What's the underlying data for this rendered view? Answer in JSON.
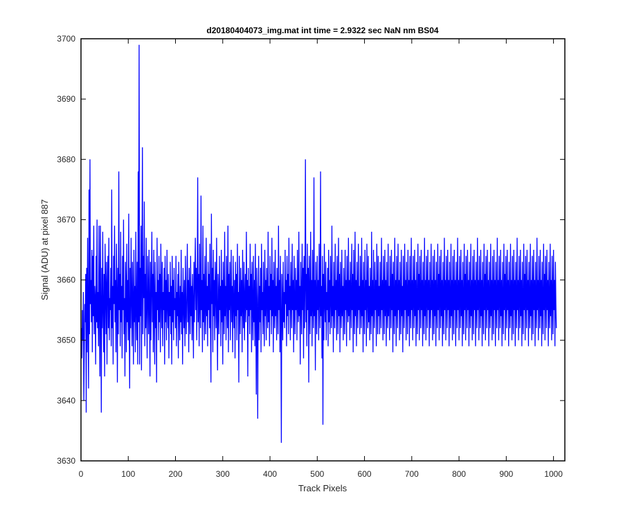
{
  "chart_data": {
    "type": "line",
    "title": "d20180404073_img.mat int time = 2.9322 sec  NaN nm BS04",
    "xlabel": "Track Pixels",
    "ylabel": "Signal (ADU) at pixel 887",
    "xlim": [
      0,
      1024
    ],
    "ylim": [
      3630,
      3700
    ],
    "xticks": [
      0,
      100,
      200,
      300,
      400,
      500,
      600,
      700,
      800,
      900,
      1000
    ],
    "yticks": [
      3630,
      3640,
      3650,
      3660,
      3670,
      3680,
      3690,
      3700
    ],
    "xtick_labels": [
      "0",
      "100",
      "200",
      "300",
      "400",
      "500",
      "600",
      "700",
      "800",
      "900",
      "1000"
    ],
    "ytick_labels": [
      "3630",
      "3640",
      "3650",
      "3660",
      "3670",
      "3680",
      "3690",
      "3700"
    ],
    "grid": false,
    "series": [
      {
        "color": "#0000ff",
        "x_start": 1,
        "x_step": 1,
        "values": [
          3652,
          3647,
          3655,
          3650,
          3658,
          3640,
          3649,
          3656,
          3653,
          3661,
          3638,
          3662,
          3648,
          3667,
          3653,
          3642,
          3675,
          3651,
          3680,
          3656,
          3660,
          3653,
          3665,
          3648,
          3664,
          3654,
          3669,
          3651,
          3659,
          3657,
          3646,
          3664,
          3653,
          3670,
          3652,
          3658,
          3649,
          3669,
          3655,
          3644,
          3669,
          3656,
          3638,
          3662,
          3652,
          3668,
          3655,
          3648,
          3661,
          3644,
          3666,
          3658,
          3651,
          3663,
          3646,
          3659,
          3664,
          3652,
          3667,
          3650,
          3657,
          3655,
          3662,
          3649,
          3675,
          3652,
          3659,
          3646,
          3664,
          3656,
          3669,
          3653,
          3660,
          3648,
          3666,
          3658,
          3643,
          3662,
          3651,
          3678,
          3655,
          3661,
          3649,
          3668,
          3653,
          3659,
          3647,
          3664,
          3655,
          3670,
          3651,
          3657,
          3644,
          3663,
          3659,
          3648,
          3666,
          3653,
          3660,
          3650,
          3671,
          3654,
          3642,
          3662,
          3652,
          3667,
          3657,
          3649,
          3663,
          3656,
          3646,
          3665,
          3653,
          3659,
          3648,
          3668,
          3655,
          3650,
          3663,
          3646,
          3678,
          3653,
          3699,
          3646,
          3662,
          3654,
          3669,
          3645,
          3660,
          3682,
          3651,
          3664,
          3657,
          3673,
          3649,
          3661,
          3652,
          3667,
          3655,
          3647,
          3664,
          3658,
          3651,
          3665,
          3656,
          3644,
          3663,
          3650,
          3659,
          3668,
          3653,
          3661,
          3648,
          3665,
          3656,
          3646,
          3663,
          3652,
          3658,
          3643,
          3667,
          3655,
          3660,
          3650,
          3664,
          3653,
          3661,
          3648,
          3666,
          3657,
          3652,
          3663,
          3649,
          3658,
          3655,
          3662,
          3646,
          3664,
          3653,
          3660,
          3650,
          3665,
          3656,
          3652,
          3661,
          3647,
          3658,
          3654,
          3663,
          3651,
          3659,
          3646,
          3664,
          3653,
          3660,
          3650,
          3662,
          3655,
          3657,
          3652,
          3664,
          3649,
          3658,
          3654,
          3661,
          3647,
          3663,
          3656,
          3650,
          3659,
          3653,
          3665,
          3651,
          3658,
          3646,
          3662,
          3656,
          3652,
          3660,
          3649,
          3664,
          3655,
          3651,
          3658,
          3666,
          3653,
          3660,
          3648,
          3662,
          3657,
          3651,
          3664,
          3654,
          3659,
          3650,
          3661,
          3656,
          3647,
          3663,
          3653,
          3660,
          3667,
          3655,
          3662,
          3650,
          3659,
          3677,
          3653,
          3661,
          3649,
          3666,
          3656,
          3652,
          3674,
          3655,
          3660,
          3648,
          3669,
          3653,
          3661,
          3650,
          3664,
          3656,
          3651,
          3667,
          3654,
          3659,
          3649,
          3663,
          3655,
          3661,
          3652,
          3666,
          3653,
          3643,
          3671,
          3656,
          3662,
          3648,
          3665,
          3654,
          3660,
          3650,
          3663,
          3658,
          3652,
          3667,
          3654,
          3645,
          3661,
          3657,
          3651,
          3664,
          3655,
          3659,
          3649,
          3665,
          3653,
          3660,
          3646,
          3663,
          3656,
          3651,
          3668,
          3654,
          3659,
          3650,
          3664,
          3657,
          3652,
          3669,
          3648,
          3661,
          3655,
          3663,
          3650,
          3657,
          3665,
          3653,
          3659,
          3648,
          3664,
          3656,
          3652,
          3660,
          3647,
          3663,
          3654,
          3661,
          3650,
          3666,
          3655,
          3658,
          3643,
          3664,
          3657,
          3651,
          3662,
          3654,
          3660,
          3648,
          3665,
          3656,
          3652,
          3663,
          3650,
          3657,
          3661,
          3653,
          3668,
          3655,
          3660,
          3644,
          3662,
          3654,
          3659,
          3651,
          3666,
          3655,
          3661,
          3648,
          3663,
          3656,
          3650,
          3664,
          3653,
          3660,
          3649,
          3666,
          3655,
          3641,
          3662,
          3656,
          3637,
          3657,
          3664,
          3650,
          3659,
          3653,
          3662,
          3648,
          3666,
          3655,
          3658,
          3651,
          3663,
          3656,
          3649,
          3665,
          3654,
          3660,
          3650,
          3662,
          3657,
          3652,
          3668,
          3653,
          3659,
          3649,
          3664,
          3655,
          3661,
          3651,
          3667,
          3654,
          3660,
          3648,
          3663,
          3656,
          3652,
          3665,
          3654,
          3659,
          3650,
          3662,
          3657,
          3651,
          3669,
          3655,
          3660,
          3648,
          3664,
          3654,
          3633,
          3661,
          3656,
          3650,
          3663,
          3653,
          3658,
          3652,
          3665,
          3656,
          3660,
          3649,
          3664,
          3654,
          3661,
          3651,
          3667,
          3655,
          3659,
          3650,
          3663,
          3657,
          3652,
          3666,
          3655,
          3660,
          3648,
          3664,
          3656,
          3651,
          3662,
          3655,
          3660,
          3650,
          3665,
          3656,
          3653,
          3668,
          3654,
          3659,
          3646,
          3663,
          3657,
          3651,
          3666,
          3655,
          3662,
          3647,
          3664,
          3652,
          3659,
          3680,
          3653,
          3661,
          3649,
          3666,
          3655,
          3662,
          3643,
          3664,
          3657,
          3651,
          3668,
          3654,
          3660,
          3649,
          3665,
          3656,
          3652,
          3677,
          3654,
          3660,
          3645,
          3663,
          3657,
          3651,
          3664,
          3655,
          3660,
          3650,
          3666,
          3657,
          3652,
          3678,
          3654,
          3659,
          3647,
          3664,
          3636,
          3661,
          3650,
          3666,
          3656,
          3653,
          3663,
          3650,
          3658,
          3655,
          3662,
          3649,
          3665,
          3653,
          3660,
          3651,
          3664,
          3657,
          3652,
          3669,
          3654,
          3659,
          3648,
          3663,
          3656,
          3652,
          3666,
          3655,
          3660,
          3650,
          3664,
          3657,
          3651,
          3667,
          3654,
          3661,
          3648,
          3663,
          3656,
          3652,
          3665,
          3654,
          3659,
          3650,
          3662,
          3657,
          3651,
          3665,
          3655,
          3660,
          3649,
          3664,
          3656,
          3653,
          3667,
          3654,
          3660,
          3650,
          3663,
          3657,
          3652,
          3666,
          3655,
          3661,
          3648,
          3665,
          3656,
          3651,
          3668,
          3654,
          3660,
          3649,
          3663,
          3657,
          3652,
          3666,
          3655,
          3659,
          3651,
          3664,
          3656,
          3652,
          3667,
          3654,
          3660,
          3648,
          3663,
          3656,
          3651,
          3665,
          3655,
          3660,
          3649,
          3666,
          3657,
          3652,
          3664,
          3653,
          3659,
          3650,
          3662,
          3656,
          3651,
          3668,
          3654,
          3660,
          3648,
          3665,
          3656,
          3652,
          3663,
          3655,
          3660,
          3649,
          3666,
          3657,
          3651,
          3664,
          3654,
          3659,
          3651,
          3663,
          3656,
          3652,
          3667,
          3655,
          3660,
          3650,
          3664,
          3657,
          3651,
          3665,
          3654,
          3660,
          3649,
          3663,
          3656,
          3652,
          3666,
          3654,
          3659,
          3650,
          3664,
          3657,
          3652,
          3665,
          3655,
          3661,
          3648,
          3663,
          3656,
          3651,
          3667,
          3654,
          3660,
          3649,
          3664,
          3656,
          3652,
          3666,
          3655,
          3660,
          3650,
          3663,
          3657,
          3651,
          3665,
          3654,
          3659,
          3648,
          3664,
          3656,
          3652,
          3666,
          3655,
          3660,
          3650,
          3663,
          3657,
          3651,
          3665,
          3654,
          3660,
          3649,
          3664,
          3656,
          3652,
          3667,
          3655,
          3660,
          3650,
          3664,
          3657,
          3652,
          3665,
          3654,
          3660,
          3649,
          3663,
          3656,
          3651,
          3666,
          3655,
          3661,
          3650,
          3664,
          3657,
          3652,
          3665,
          3655,
          3660,
          3649,
          3663,
          3656,
          3651,
          3667,
          3654,
          3660,
          3650,
          3664,
          3657,
          3652,
          3665,
          3655,
          3660,
          3649,
          3663,
          3656,
          3652,
          3666,
          3655,
          3660,
          3650,
          3664,
          3657,
          3651,
          3665,
          3654,
          3660,
          3649,
          3663,
          3656,
          3652,
          3666,
          3655,
          3661,
          3650,
          3664,
          3657,
          3652,
          3665,
          3654,
          3660,
          3649,
          3663,
          3656,
          3651,
          3667,
          3655,
          3660,
          3650,
          3664,
          3657,
          3652,
          3665,
          3655,
          3660,
          3649,
          3663,
          3656,
          3652,
          3666,
          3654,
          3660,
          3650,
          3664,
          3657,
          3651,
          3665,
          3655,
          3660,
          3649,
          3663,
          3656,
          3652,
          3667,
          3655,
          3660,
          3650,
          3664,
          3657,
          3652,
          3665,
          3654,
          3660,
          3649,
          3663,
          3656,
          3651,
          3666,
          3655,
          3661,
          3650,
          3664,
          3657,
          3652,
          3665,
          3655,
          3660,
          3649,
          3663,
          3656,
          3652,
          3666,
          3654,
          3660,
          3650,
          3664,
          3657,
          3651,
          3665,
          3655,
          3660,
          3649,
          3663,
          3656,
          3652,
          3667,
          3655,
          3660,
          3650,
          3664,
          3657,
          3652,
          3665,
          3654,
          3660,
          3649,
          3663,
          3656,
          3651,
          3666,
          3655,
          3661,
          3650,
          3664,
          3657,
          3652,
          3665,
          3655,
          3660,
          3649,
          3663,
          3656,
          3652,
          3666,
          3654,
          3660,
          3650,
          3664,
          3657,
          3651,
          3665,
          3655,
          3660,
          3649,
          3663,
          3656,
          3652,
          3667,
          3655,
          3660,
          3650,
          3664,
          3657,
          3652,
          3665,
          3654,
          3660,
          3649,
          3663,
          3656,
          3651,
          3666,
          3655,
          3661,
          3650,
          3664,
          3657,
          3652,
          3665,
          3655,
          3660,
          3649,
          3663,
          3656,
          3652,
          3666,
          3654,
          3660,
          3650,
          3664,
          3657,
          3651,
          3665,
          3655,
          3660,
          3649,
          3663,
          3656,
          3652,
          3667,
          3655,
          3660,
          3650,
          3664,
          3657,
          3652,
          3665,
          3654,
          3660,
          3649,
          3663,
          3656,
          3651,
          3666,
          3655,
          3661,
          3650,
          3664,
          3657,
          3652,
          3665,
          3655,
          3660,
          3649,
          3663,
          3656,
          3652,
          3666,
          3654,
          3660,
          3650,
          3664,
          3657,
          3651,
          3665,
          3655,
          3660,
          3649,
          3663,
          3656,
          3652,
          3667,
          3655,
          3660,
          3650,
          3664,
          3657,
          3652,
          3665,
          3654,
          3660,
          3649,
          3663,
          3656,
          3651,
          3666,
          3655,
          3661,
          3650,
          3664,
          3657,
          3652,
          3665,
          3655,
          3660,
          3649,
          3663,
          3656,
          3652,
          3666,
          3654,
          3660,
          3650,
          3664,
          3657,
          3651,
          3665,
          3655,
          3660,
          3649,
          3663,
          3656,
          3652
        ]
      }
    ]
  }
}
